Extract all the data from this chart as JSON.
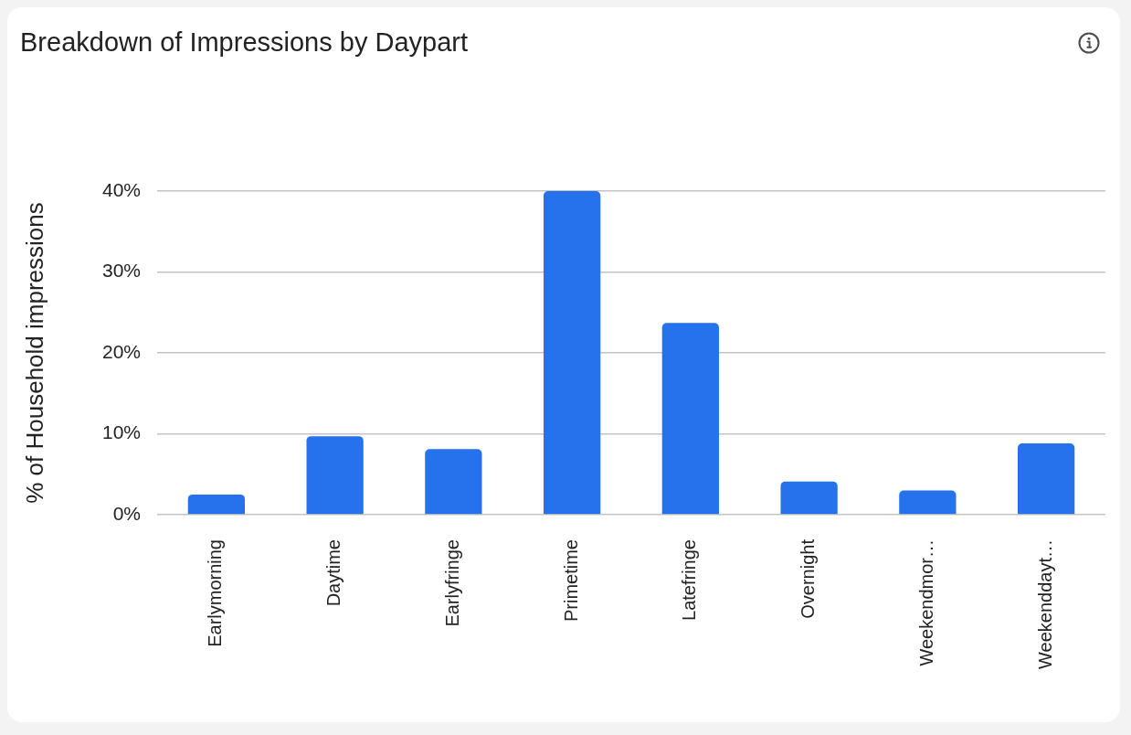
{
  "chart_data": {
    "type": "bar",
    "title": "Breakdown of Impressions by Daypart",
    "ylabel": "% of Household impressions",
    "categories": [
      "Earlymorning",
      "Daytime",
      "Earlyfringe",
      "Primetime",
      "Latefringe",
      "Overnight",
      "Weekendmor…",
      "Weekenddayt…"
    ],
    "values": [
      2.5,
      9.7,
      8.1,
      40,
      23.7,
      4.1,
      3.0,
      8.8
    ],
    "color": "#2671ec",
    "ylim": [
      0,
      40
    ],
    "yticks": [
      {
        "value": 0,
        "label": "0%"
      },
      {
        "value": 10,
        "label": "10%"
      },
      {
        "value": 20,
        "label": "20%"
      },
      {
        "value": 30,
        "label": "30%"
      },
      {
        "value": 40,
        "label": "40%"
      }
    ],
    "grid": "y"
  }
}
